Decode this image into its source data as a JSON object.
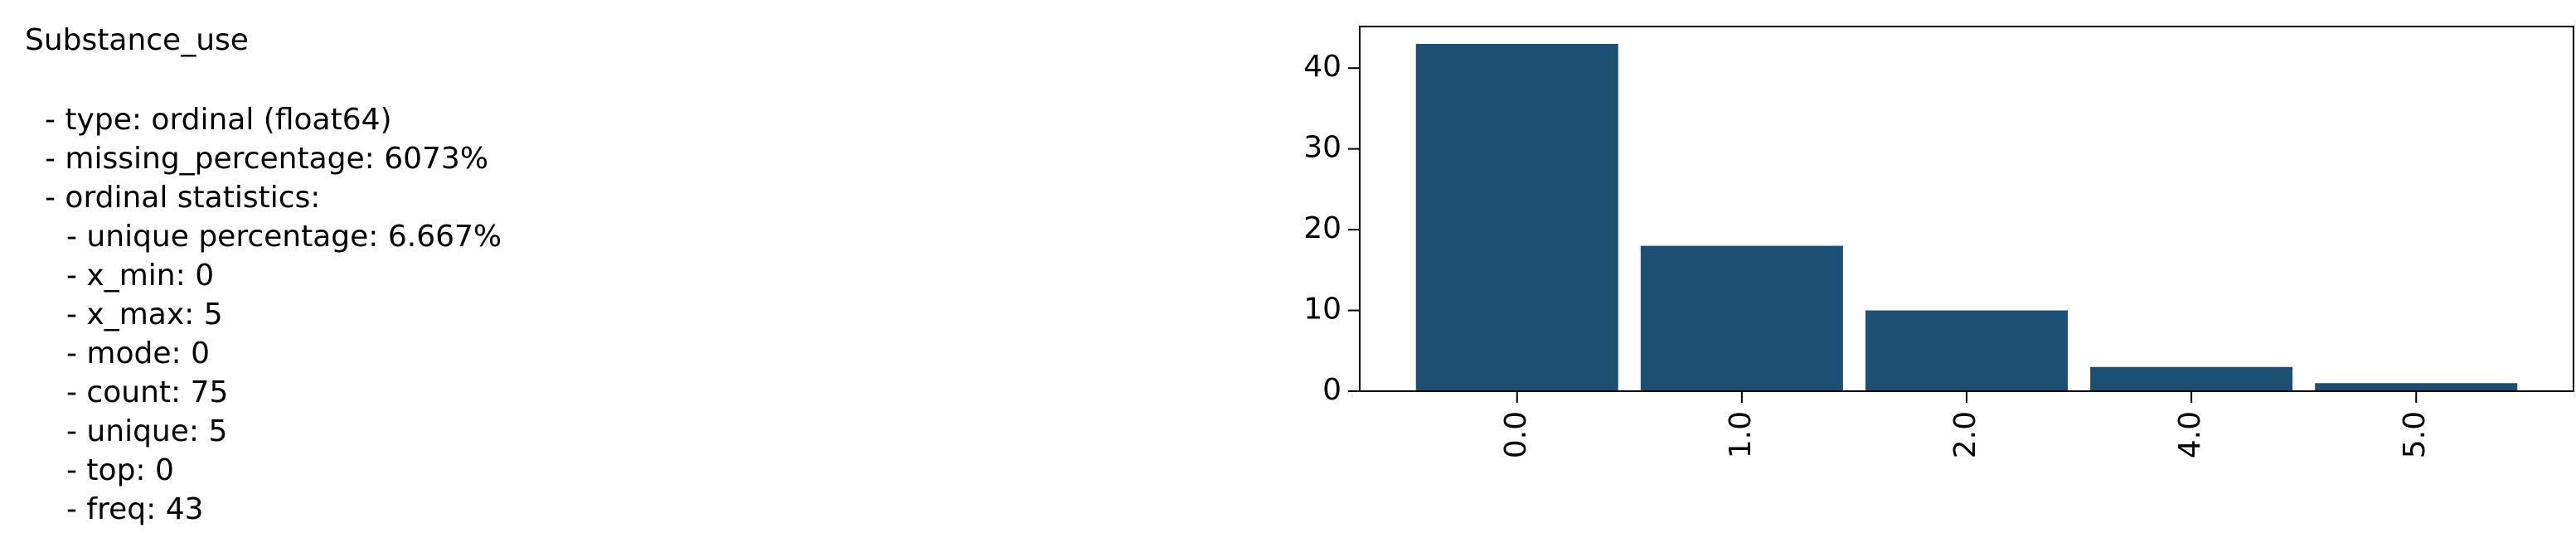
{
  "summary": {
    "title": "Substance_use",
    "items": [
      "- type: ordinal (float64)",
      "- missing_percentage: 6073%",
      "- ordinal statistics:"
    ],
    "statistics": [
      "- unique percentage: 6.667%",
      "- x_min: 0",
      "- x_max: 5",
      "- mode: 0",
      "- count: 75",
      "- unique: 5",
      "- top: 0",
      "- freq: 43"
    ]
  },
  "chart_data": {
    "type": "bar",
    "categories": [
      "0.0",
      "1.0",
      "2.0",
      "4.0",
      "5.0"
    ],
    "values": [
      43,
      18,
      10,
      3,
      1
    ],
    "color": "#1c4f72",
    "ylim": [
      0,
      45.15
    ],
    "yticks": [
      0,
      10,
      20,
      30,
      40
    ]
  }
}
